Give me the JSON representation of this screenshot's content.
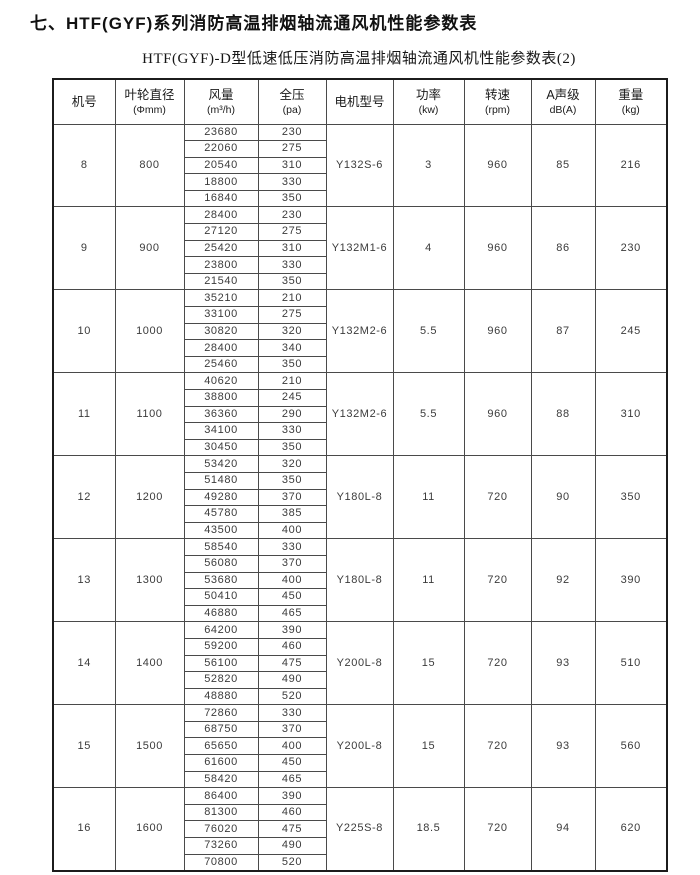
{
  "page": {
    "title": "七、HTF(GYF)系列消防高温排烟轴流通风机性能参数表",
    "subtitle": "HTF(GYF)-D型低速低压消防高温排烟轴流通风机性能参数表(2)"
  },
  "table": {
    "columns": [
      {
        "label": "机号",
        "unit": ""
      },
      {
        "label": "叶轮直径",
        "unit": "(Φmm)"
      },
      {
        "label": "风量",
        "unit": "(m³/h)"
      },
      {
        "label": "全压",
        "unit": "(pa)"
      },
      {
        "label": "电机型号",
        "unit": ""
      },
      {
        "label": "功率",
        "unit": "(kw)"
      },
      {
        "label": "转速",
        "unit": "(rpm)"
      },
      {
        "label": "A声级",
        "unit": "dB(A)"
      },
      {
        "label": "重量",
        "unit": "(kg)"
      }
    ],
    "groups": [
      {
        "machine_no": "8",
        "impeller_diameter": "800",
        "rows": [
          [
            "23680",
            "230"
          ],
          [
            "22060",
            "275"
          ],
          [
            "20540",
            "310"
          ],
          [
            "18800",
            "330"
          ],
          [
            "16840",
            "350"
          ]
        ],
        "motor_model": "Y132S-6",
        "power_kw": "3",
        "speed_rpm": "960",
        "noise_db": "85",
        "weight_kg": "216"
      },
      {
        "machine_no": "9",
        "impeller_diameter": "900",
        "rows": [
          [
            "28400",
            "230"
          ],
          [
            "27120",
            "275"
          ],
          [
            "25420",
            "310"
          ],
          [
            "23800",
            "330"
          ],
          [
            "21540",
            "350"
          ]
        ],
        "motor_model": "Y132M1-6",
        "power_kw": "4",
        "speed_rpm": "960",
        "noise_db": "86",
        "weight_kg": "230"
      },
      {
        "machine_no": "10",
        "impeller_diameter": "1000",
        "rows": [
          [
            "35210",
            "210"
          ],
          [
            "33100",
            "275"
          ],
          [
            "30820",
            "320"
          ],
          [
            "28400",
            "340"
          ],
          [
            "25460",
            "350"
          ]
        ],
        "motor_model": "Y132M2-6",
        "power_kw": "5.5",
        "speed_rpm": "960",
        "noise_db": "87",
        "weight_kg": "245"
      },
      {
        "machine_no": "11",
        "impeller_diameter": "1100",
        "rows": [
          [
            "40620",
            "210"
          ],
          [
            "38800",
            "245"
          ],
          [
            "36360",
            "290"
          ],
          [
            "34100",
            "330"
          ],
          [
            "30450",
            "350"
          ]
        ],
        "motor_model": "Y132M2-6",
        "power_kw": "5.5",
        "speed_rpm": "960",
        "noise_db": "88",
        "weight_kg": "310"
      },
      {
        "machine_no": "12",
        "impeller_diameter": "1200",
        "rows": [
          [
            "53420",
            "320"
          ],
          [
            "51480",
            "350"
          ],
          [
            "49280",
            "370"
          ],
          [
            "45780",
            "385"
          ],
          [
            "43500",
            "400"
          ]
        ],
        "motor_model": "Y180L-8",
        "power_kw": "11",
        "speed_rpm": "720",
        "noise_db": "90",
        "weight_kg": "350"
      },
      {
        "machine_no": "13",
        "impeller_diameter": "1300",
        "rows": [
          [
            "58540",
            "330"
          ],
          [
            "56080",
            "370"
          ],
          [
            "53680",
            "400"
          ],
          [
            "50410",
            "450"
          ],
          [
            "46880",
            "465"
          ]
        ],
        "motor_model": "Y180L-8",
        "power_kw": "11",
        "speed_rpm": "720",
        "noise_db": "92",
        "weight_kg": "390"
      },
      {
        "machine_no": "14",
        "impeller_diameter": "1400",
        "rows": [
          [
            "64200",
            "390"
          ],
          [
            "59200",
            "460"
          ],
          [
            "56100",
            "475"
          ],
          [
            "52820",
            "490"
          ],
          [
            "48880",
            "520"
          ]
        ],
        "motor_model": "Y200L-8",
        "power_kw": "15",
        "speed_rpm": "720",
        "noise_db": "93",
        "weight_kg": "510"
      },
      {
        "machine_no": "15",
        "impeller_diameter": "1500",
        "rows": [
          [
            "72860",
            "330"
          ],
          [
            "68750",
            "370"
          ],
          [
            "65650",
            "400"
          ],
          [
            "61600",
            "450"
          ],
          [
            "58420",
            "465"
          ]
        ],
        "motor_model": "Y200L-8",
        "power_kw": "15",
        "speed_rpm": "720",
        "noise_db": "93",
        "weight_kg": "560"
      },
      {
        "machine_no": "16",
        "impeller_diameter": "1600",
        "rows": [
          [
            "86400",
            "390"
          ],
          [
            "81300",
            "460"
          ],
          [
            "76020",
            "475"
          ],
          [
            "73260",
            "490"
          ],
          [
            "70800",
            "520"
          ]
        ],
        "motor_model": "Y225S-8",
        "power_kw": "18.5",
        "speed_rpm": "720",
        "noise_db": "94",
        "weight_kg": "620"
      }
    ]
  },
  "colors": {
    "background": "#ffffff",
    "text": "#1d1d1d",
    "border": "#4a4a4a"
  }
}
